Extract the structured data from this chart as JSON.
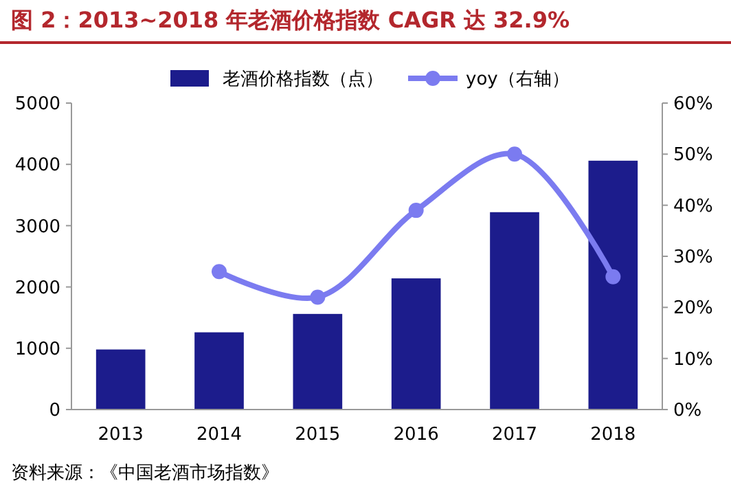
{
  "chart_data": {
    "type": "bar",
    "title": "图 2：2013~2018 年老酒价格指数 CAGR 达 32.9%",
    "categories": [
      "2013",
      "2014",
      "2015",
      "2016",
      "2017",
      "2018"
    ],
    "series": [
      {
        "name": "老酒价格指数（点）",
        "color": "#1c1c8c",
        "values": [
          980,
          1260,
          1560,
          2140,
          3220,
          4060
        ]
      },
      {
        "name": "yoy（右轴）",
        "type": "line",
        "axis": "y2",
        "color": "#7b7bf0",
        "values": [
          null,
          27,
          22,
          39,
          50,
          26
        ]
      }
    ],
    "ylim": [
      0,
      5000
    ],
    "yticks": [
      0,
      1000,
      2000,
      3000,
      4000,
      5000
    ],
    "y2lim": [
      0,
      60
    ],
    "y2ticks": [
      {
        "value": 0,
        "label": "0%"
      },
      {
        "value": 10,
        "label": "10%"
      },
      {
        "value": 20,
        "label": "20%"
      },
      {
        "value": 30,
        "label": "30%"
      },
      {
        "value": 40,
        "label": "40%"
      },
      {
        "value": 50,
        "label": "50%"
      },
      {
        "value": 60,
        "label": "60%"
      }
    ],
    "legend": "top",
    "marker": "circle",
    "grid": false,
    "annotations": [
      "资料来源：《中国老酒市场指数》"
    ]
  }
}
